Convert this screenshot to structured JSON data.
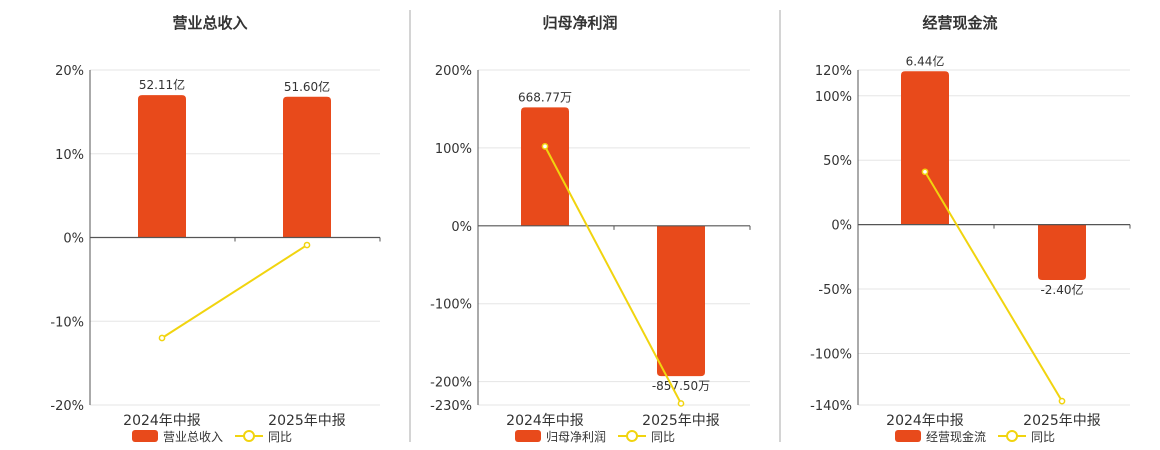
{
  "colors": {
    "bar": "#e84a1b",
    "line": "#f1d40f",
    "grid": "#e5e5e5",
    "axis": "#555555",
    "divider": "#aaaaaa"
  },
  "chart_data": [
    {
      "type": "bar",
      "title": "营业总收入",
      "categories": [
        "2024年中报",
        "2025年中报"
      ],
      "bar_series": {
        "name": "营业总收入",
        "values": [
          17,
          16.8
        ],
        "labels": [
          "52.11亿",
          "51.60亿"
        ]
      },
      "line_series": {
        "name": "同比",
        "values": [
          -12,
          -0.9
        ]
      },
      "ylim": [
        -20,
        20
      ],
      "yticks": [
        20,
        10,
        0,
        -10,
        -20
      ],
      "ytick_labels": [
        "20%",
        "10%",
        "0%",
        "-10%",
        "-20%"
      ],
      "legend": "bottom"
    },
    {
      "type": "bar",
      "title": "归母净利润",
      "categories": [
        "2024年中报",
        "2025年中报"
      ],
      "bar_series": {
        "name": "归母净利润",
        "values": [
          152,
          -193
        ],
        "labels": [
          "668.77万",
          "-857.50万"
        ]
      },
      "line_series": {
        "name": "同比",
        "values": [
          102,
          -228
        ]
      },
      "ylim": [
        -230,
        200
      ],
      "yticks": [
        200,
        100,
        0,
        -100,
        -200,
        -230
      ],
      "ytick_labels": [
        "200%",
        "100%",
        "0%",
        "-100%",
        "-200%",
        "-230%"
      ],
      "legend": "bottom"
    },
    {
      "type": "bar",
      "title": "经营现金流",
      "categories": [
        "2024年中报",
        "2025年中报"
      ],
      "bar_series": {
        "name": "经营现金流",
        "values": [
          119,
          -43
        ],
        "labels": [
          "6.44亿",
          "-2.40亿"
        ]
      },
      "line_series": {
        "name": "同比",
        "values": [
          41,
          -137
        ]
      },
      "ylim": [
        -140,
        120
      ],
      "yticks": [
        120,
        100,
        50,
        0,
        -50,
        -100,
        -140
      ],
      "ytick_labels": [
        "120%",
        "100%",
        "50%",
        "0%",
        "-50%",
        "-100%",
        "-140%"
      ],
      "legend": "bottom"
    }
  ]
}
